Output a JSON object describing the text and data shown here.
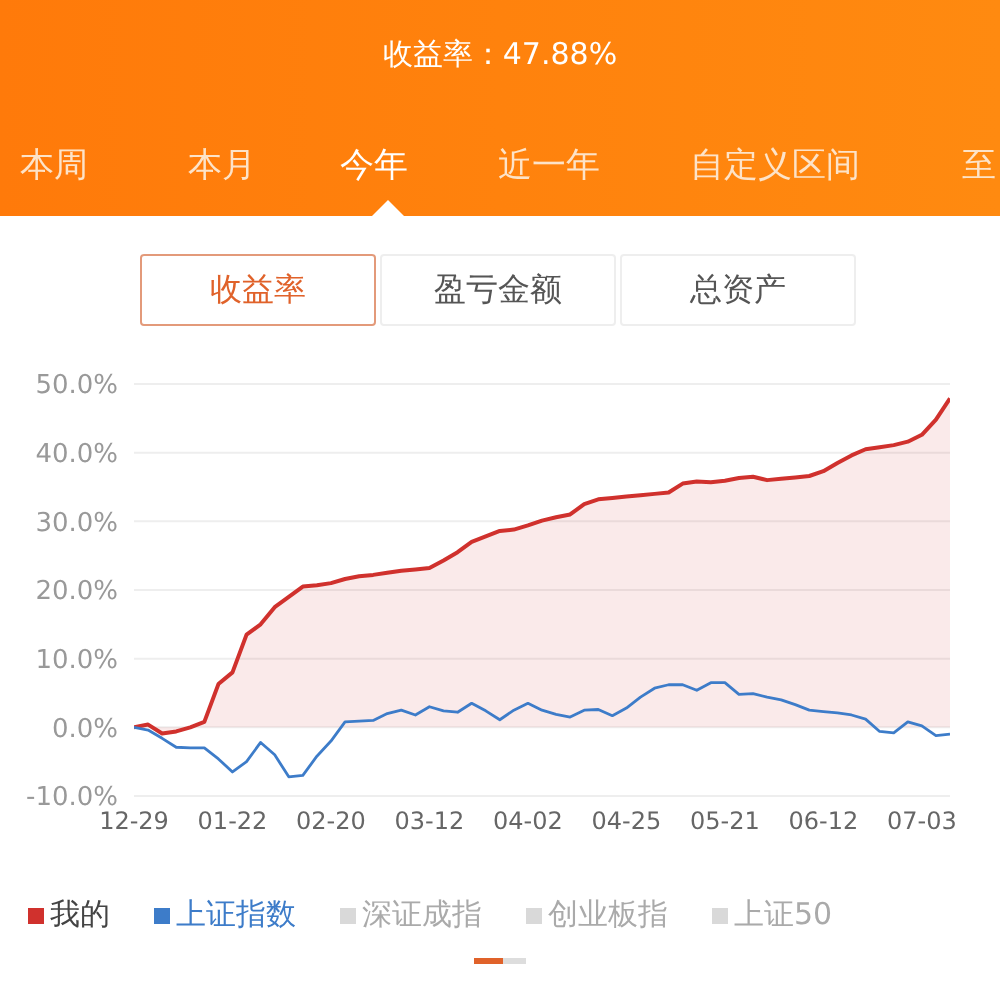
{
  "chart_data": {
    "type": "line",
    "title": "收益率：47.88%",
    "annotations": [
      "本周",
      "本月",
      "今年",
      "近一年",
      "自定义区间",
      "至",
      "收益率",
      "盈亏金额",
      "总资产",
      "深证成指",
      "创业板指",
      "上证50"
    ],
    "categories": [
      "12-29",
      null,
      null,
      null,
      null,
      null,
      null,
      "01-22",
      null,
      null,
      null,
      null,
      null,
      null,
      "02-20",
      null,
      null,
      null,
      null,
      null,
      null,
      "03-12",
      null,
      null,
      null,
      null,
      null,
      null,
      "04-02",
      null,
      null,
      null,
      null,
      null,
      null,
      "04-25",
      null,
      null,
      null,
      null,
      null,
      null,
      "05-21",
      null,
      null,
      null,
      null,
      null,
      null,
      "06-12",
      null,
      null,
      null,
      null,
      null,
      null,
      "07-03",
      null,
      null
    ],
    "series": [
      {
        "name": "我的",
        "type": "area",
        "color": "#d0312d",
        "values": [
          0,
          0.4,
          -0.9,
          -0.6,
          0,
          0.8,
          6.3,
          8,
          13.5,
          15,
          17.5,
          19,
          20.5,
          20.7,
          21,
          21.6,
          22,
          22.2,
          22.5,
          22.8,
          23,
          23.2,
          24.3,
          25.5,
          27,
          27.8,
          28.6,
          28.8,
          29.4,
          30.1,
          30.6,
          31,
          32.5,
          33.2,
          33.4,
          33.6,
          33.8,
          34,
          34.2,
          35.5,
          35.8,
          35.7,
          35.9,
          36.3,
          36.5,
          36,
          36.2,
          36.4,
          36.6,
          37.3,
          38.5,
          39.6,
          40.5,
          40.8,
          41.1,
          41.6,
          42.6,
          44.8,
          47.9
        ]
      },
      {
        "name": "上证指数",
        "color": "#3d7cc9",
        "values": [
          0,
          -0.4,
          -1.6,
          -2.9,
          -3,
          -3,
          -4.6,
          -6.5,
          -5,
          -2.2,
          -4,
          -7.2,
          -7,
          -4.2,
          -2,
          0.8,
          0.9,
          1,
          2,
          2.5,
          1.8,
          3,
          2.4,
          2.2,
          3.5,
          2.4,
          1.1,
          2.5,
          3.5,
          2.5,
          1.9,
          1.5,
          2.5,
          2.6,
          1.7,
          2.8,
          4.4,
          5.7,
          6.2,
          6.2,
          5.4,
          6.5,
          6.5,
          4.8,
          4.9,
          4.4,
          4,
          3.3,
          2.5,
          2.3,
          2.1,
          1.8,
          1.2,
          -0.6,
          -0.8,
          0.8,
          0.2,
          -1.2,
          -1.0
        ]
      }
    ],
    "ylim": [
      -10,
      50
    ],
    "yticks": [
      {
        "value": -10,
        "label": "-10.0%"
      },
      {
        "value": 0,
        "label": "0.0%"
      },
      {
        "value": 10,
        "label": "10.0%"
      },
      {
        "value": 20,
        "label": "20.0%"
      },
      {
        "value": 30,
        "label": "30.0%"
      },
      {
        "value": 40,
        "label": "40.0%"
      },
      {
        "value": 50,
        "label": "50.0%"
      }
    ],
    "grid": "y",
    "legend": "bottom",
    "marker": "none"
  }
}
